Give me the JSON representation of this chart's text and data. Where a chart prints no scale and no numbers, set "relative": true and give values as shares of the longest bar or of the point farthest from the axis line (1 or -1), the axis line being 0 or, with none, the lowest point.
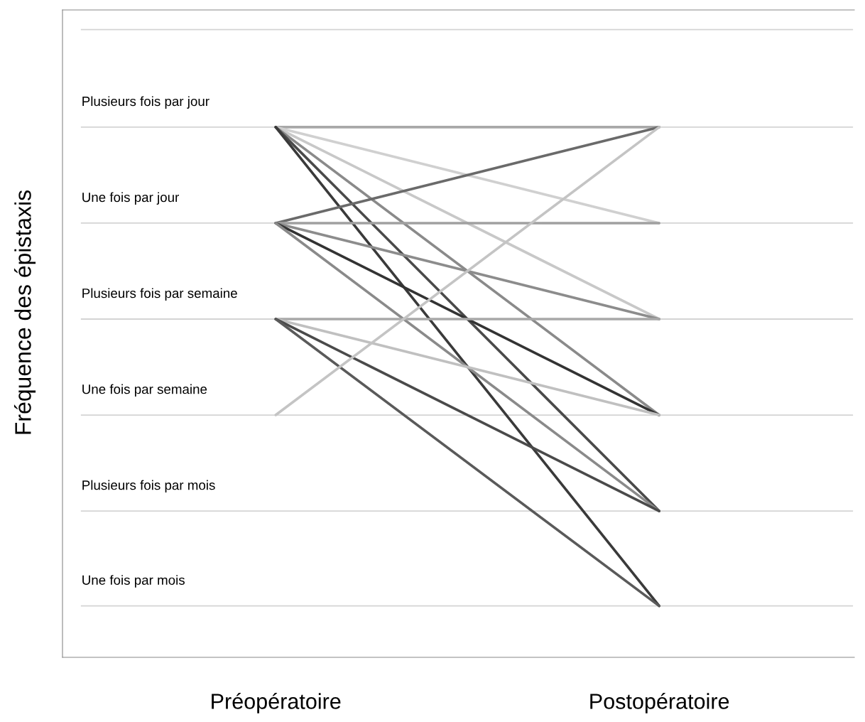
{
  "chart_data": {
    "type": "line",
    "relative": true,
    "ylabel": "Fréquence des épistaxis",
    "categories": [
      "Préopératoire",
      "Postopératoire"
    ],
    "ref_lines": [
      {
        "axis": "y",
        "value": 1.184,
        "color": "#d4d4d4"
      },
      {
        "axis": "y",
        "value": 1,
        "label": "Plusieurs fois par jour",
        "color": "#d4d4d4"
      },
      {
        "axis": "y",
        "value": 0.819,
        "label": "Une fois par jour",
        "color": "#d4d4d4"
      },
      {
        "axis": "y",
        "value": 0.638,
        "label": "Plusieurs fois par semaine",
        "color": "#d4d4d4"
      },
      {
        "axis": "y",
        "value": 0.457,
        "label": "Une fois par semaine",
        "color": "#d4d4d4"
      },
      {
        "axis": "y",
        "value": 0.276,
        "label": "Plusieurs fois par mois",
        "color": "#d4d4d4"
      },
      {
        "axis": "y",
        "value": 0.097,
        "label": "Une fois par mois",
        "color": "#d4d4d4"
      }
    ],
    "marker": "none",
    "line_style": "solid",
    "series": [
      {
        "color": "#a8a8a8",
        "values": [
          1,
          1
        ]
      },
      {
        "color": "#d0d0d0",
        "values": [
          1,
          0.819
        ]
      },
      {
        "color": "#c8c8c8",
        "values": [
          1,
          0.638
        ]
      },
      {
        "color": "#8a8a8a",
        "values": [
          1,
          0.457
        ]
      },
      {
        "color": "#4a4a4a",
        "values": [
          1,
          0.276
        ]
      },
      {
        "color": "#3a3a3a",
        "values": [
          1,
          0.097
        ]
      },
      {
        "color": "#6a6a6a",
        "values": [
          0.819,
          1
        ]
      },
      {
        "color": "#a0a0a0",
        "values": [
          0.819,
          0.819
        ]
      },
      {
        "color": "#8c8c8c",
        "values": [
          0.819,
          0.638
        ]
      },
      {
        "color": "#333333",
        "values": [
          0.819,
          0.457
        ]
      },
      {
        "color": "#8a8a8a",
        "values": [
          0.819,
          0.276
        ]
      },
      {
        "color": "#a8a8a8",
        "values": [
          0.638,
          0.638
        ]
      },
      {
        "color": "#c0c0c0",
        "values": [
          0.638,
          0.457
        ]
      },
      {
        "color": "#4a4a4a",
        "values": [
          0.638,
          0.276
        ]
      },
      {
        "color": "#5a5a5a",
        "values": [
          0.638,
          0.097
        ]
      },
      {
        "color": "#c4c4c4",
        "values": [
          0.457,
          1
        ]
      }
    ]
  }
}
